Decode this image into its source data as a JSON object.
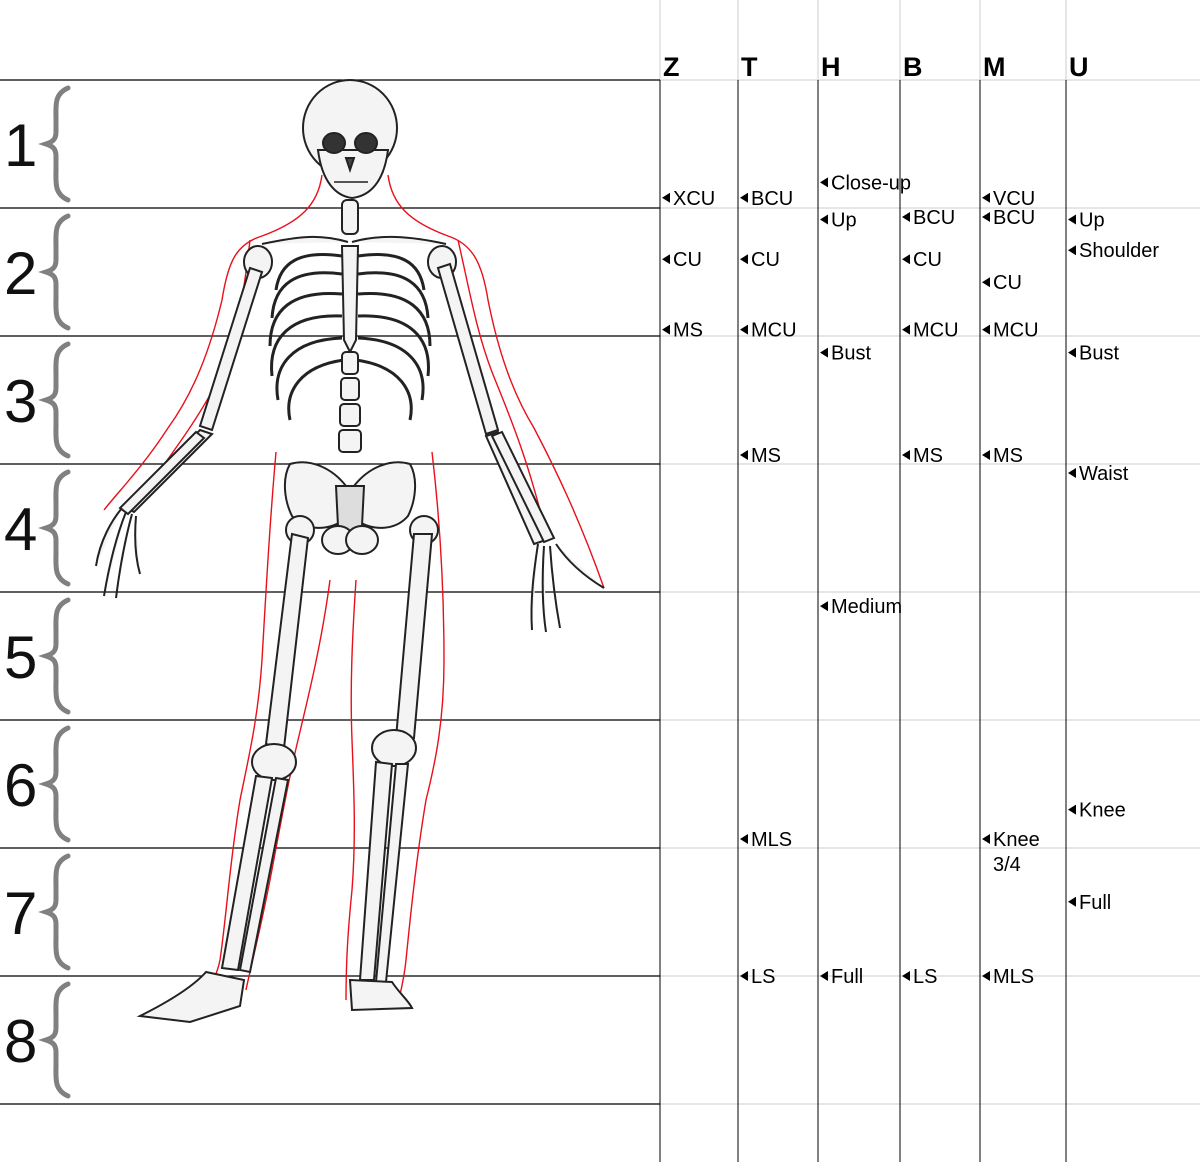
{
  "rows": [
    "1",
    "2",
    "3",
    "4",
    "5",
    "6",
    "7",
    "8"
  ],
  "columns": [
    {
      "id": "Z",
      "label": "Z"
    },
    {
      "id": "T",
      "label": "T"
    },
    {
      "id": "H",
      "label": "H"
    },
    {
      "id": "B",
      "label": "B"
    },
    {
      "id": "M",
      "label": "M"
    },
    {
      "id": "U",
      "label": "U"
    }
  ],
  "markers": [
    {
      "col": "Z",
      "pos": 1.92,
      "lines": [
        "XCU"
      ]
    },
    {
      "col": "Z",
      "pos": 2.4,
      "lines": [
        "CU"
      ]
    },
    {
      "col": "Z",
      "pos": 2.95,
      "lines": [
        "MS"
      ]
    },
    {
      "col": "T",
      "pos": 1.92,
      "lines": [
        "BCU"
      ]
    },
    {
      "col": "T",
      "pos": 2.4,
      "lines": [
        "CU"
      ]
    },
    {
      "col": "T",
      "pos": 2.95,
      "lines": [
        "MCU"
      ]
    },
    {
      "col": "T",
      "pos": 3.93,
      "lines": [
        "MS"
      ]
    },
    {
      "col": "T",
      "pos": 6.93,
      "lines": [
        "MLS"
      ]
    },
    {
      "col": "T",
      "pos": 8.0,
      "lines": [
        "LS"
      ]
    },
    {
      "col": "H",
      "pos": 1.8,
      "lines": [
        "Close-up"
      ]
    },
    {
      "col": "H",
      "pos": 2.09,
      "lines": [
        "Up"
      ]
    },
    {
      "col": "H",
      "pos": 3.13,
      "lines": [
        "Bust"
      ]
    },
    {
      "col": "H",
      "pos": 5.11,
      "lines": [
        "Medium"
      ]
    },
    {
      "col": "H",
      "pos": 8.0,
      "lines": [
        "Full"
      ]
    },
    {
      "col": "B",
      "pos": 2.07,
      "lines": [
        "BCU"
      ]
    },
    {
      "col": "B",
      "pos": 2.4,
      "lines": [
        "CU"
      ]
    },
    {
      "col": "B",
      "pos": 2.95,
      "lines": [
        "MCU"
      ]
    },
    {
      "col": "B",
      "pos": 3.93,
      "lines": [
        "MS"
      ]
    },
    {
      "col": "B",
      "pos": 8.0,
      "lines": [
        "LS"
      ]
    },
    {
      "col": "M",
      "pos": 1.92,
      "lines": [
        "VCU"
      ]
    },
    {
      "col": "M",
      "pos": 2.07,
      "lines": [
        "BCU"
      ]
    },
    {
      "col": "M",
      "pos": 2.58,
      "lines": [
        "CU"
      ]
    },
    {
      "col": "M",
      "pos": 2.95,
      "lines": [
        "MCU"
      ]
    },
    {
      "col": "M",
      "pos": 3.93,
      "lines": [
        "MS"
      ]
    },
    {
      "col": "M",
      "pos": 6.93,
      "lines": [
        "Knee",
        "3/4"
      ]
    },
    {
      "col": "M",
      "pos": 8.0,
      "lines": [
        "MLS"
      ]
    },
    {
      "col": "U",
      "pos": 2.09,
      "lines": [
        "Up"
      ]
    },
    {
      "col": "U",
      "pos": 2.33,
      "lines": [
        "Shoulder"
      ]
    },
    {
      "col": "U",
      "pos": 3.13,
      "lines": [
        "Bust"
      ]
    },
    {
      "col": "U",
      "pos": 4.07,
      "lines": [
        "Waist"
      ]
    },
    {
      "col": "U",
      "pos": 6.7,
      "lines": [
        "Knee"
      ]
    },
    {
      "col": "U",
      "pos": 7.42,
      "lines": [
        "Full"
      ]
    }
  ],
  "colors": {
    "grid": "#cccccc",
    "row_line": "#000000",
    "column_line": "#000000",
    "brace": "#808080",
    "outline": "#e8101a",
    "bone_fill": "#f4f4f4",
    "bone_stroke": "#222222"
  },
  "figure_icon": "human-skeleton-front"
}
